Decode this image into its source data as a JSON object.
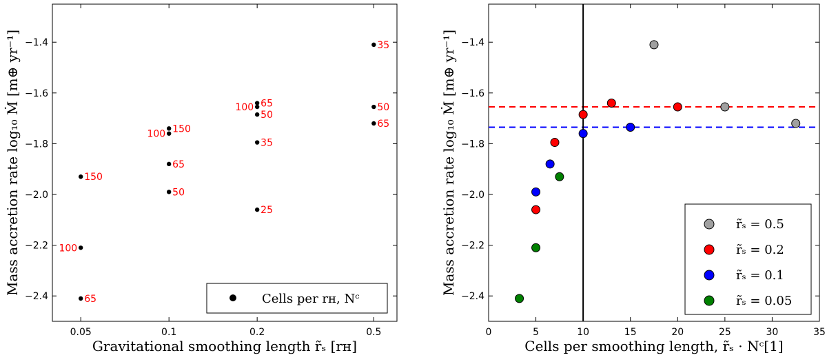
{
  "chart_data": [
    {
      "type": "scatter",
      "xscale": "log",
      "xlim": [
        0.04,
        0.6
      ],
      "ylim": [
        -2.5,
        -1.25
      ],
      "xticks": [
        0.05,
        0.1,
        0.2,
        0.5
      ],
      "xtick_labels": [
        "0.05",
        "0.1",
        "0.2",
        "0.5"
      ],
      "yticks": [
        -2.4,
        -2.2,
        -2.0,
        -1.8,
        -1.6,
        -1.4
      ],
      "ytick_labels": [
        "−2.4",
        "−2.2",
        "−2.0",
        "−1.8",
        "−1.6",
        "−1.4"
      ],
      "xlabel": "Gravitational smoothing length r̃ₛ [rʜ]",
      "ylabel": "Mass accretion rate log₁₀ Ṁ [m⊕ yr⁻¹]",
      "legend": {
        "label": "Cells per rʜ, Nᶜ",
        "position": "lower-right"
      },
      "point_color": "#000000",
      "label_color": "#ff0000",
      "points": [
        {
          "x": 0.05,
          "y": -1.93,
          "label": "150",
          "side": "right"
        },
        {
          "x": 0.05,
          "y": -2.21,
          "label": "100",
          "side": "left"
        },
        {
          "x": 0.05,
          "y": -2.41,
          "label": "65",
          "side": "right"
        },
        {
          "x": 0.1,
          "y": -1.74,
          "label": "150",
          "side": "right"
        },
        {
          "x": 0.1,
          "y": -1.76,
          "label": "100",
          "side": "left"
        },
        {
          "x": 0.1,
          "y": -1.88,
          "label": "65",
          "side": "right"
        },
        {
          "x": 0.1,
          "y": -1.99,
          "label": "50",
          "side": "right"
        },
        {
          "x": 0.2,
          "y": -1.64,
          "label": "65",
          "side": "right"
        },
        {
          "x": 0.2,
          "y": -1.655,
          "label": "100",
          "side": "left"
        },
        {
          "x": 0.2,
          "y": -1.685,
          "label": "50",
          "side": "right"
        },
        {
          "x": 0.2,
          "y": -1.795,
          "label": "35",
          "side": "right"
        },
        {
          "x": 0.2,
          "y": -2.06,
          "label": "25",
          "side": "right"
        },
        {
          "x": 0.5,
          "y": -1.41,
          "label": "35",
          "side": "right"
        },
        {
          "x": 0.5,
          "y": -1.655,
          "label": "50",
          "side": "right"
        },
        {
          "x": 0.5,
          "y": -1.72,
          "label": "65",
          "side": "right"
        }
      ]
    },
    {
      "type": "scatter",
      "xlim": [
        0,
        35
      ],
      "ylim": [
        -2.5,
        -1.25
      ],
      "xticks": [
        0,
        5,
        10,
        15,
        20,
        25,
        30,
        35
      ],
      "xtick_labels": [
        "0",
        "5",
        "10",
        "15",
        "20",
        "25",
        "30",
        "35"
      ],
      "yticks": [
        -2.4,
        -2.2,
        -2.0,
        -1.8,
        -1.6,
        -1.4
      ],
      "ytick_labels": [
        "−2.4",
        "−2.2",
        "−2.0",
        "−1.8",
        "−1.6",
        "−1.4"
      ],
      "xlabel": "Cells per smoothing length, r̃ₛ · Nᶜ[1]",
      "ylabel": "Mass accretion rate log₁₀ Ṁ [m⊕ yr⁻¹]",
      "vline": {
        "x": 10,
        "color": "#000000"
      },
      "hlines": [
        {
          "y": -1.655,
          "color": "#ff0000",
          "style": "dashed"
        },
        {
          "y": -1.735,
          "color": "#0000ff",
          "style": "dashed"
        }
      ],
      "legend_position": "lower-right",
      "series": [
        {
          "name": "r̃ₛ = 0.5",
          "color": "#a0a0a0",
          "points": [
            [
              17.5,
              -1.41
            ],
            [
              25,
              -1.655
            ],
            [
              32.5,
              -1.72
            ]
          ]
        },
        {
          "name": "r̃ₛ = 0.2",
          "color": "#ff0000",
          "points": [
            [
              5,
              -2.06
            ],
            [
              7,
              -1.795
            ],
            [
              10,
              -1.685
            ],
            [
              13,
              -1.64
            ],
            [
              20,
              -1.655
            ]
          ]
        },
        {
          "name": "r̃ₛ = 0.1",
          "color": "#0000ff",
          "points": [
            [
              5,
              -1.99
            ],
            [
              6.5,
              -1.88
            ],
            [
              10,
              -1.76
            ],
            [
              15,
              -1.735
            ]
          ]
        },
        {
          "name": "r̃ₛ = 0.05",
          "color": "#008000",
          "points": [
            [
              3.25,
              -2.41
            ],
            [
              5,
              -2.21
            ],
            [
              7.5,
              -1.93
            ]
          ]
        }
      ]
    }
  ]
}
